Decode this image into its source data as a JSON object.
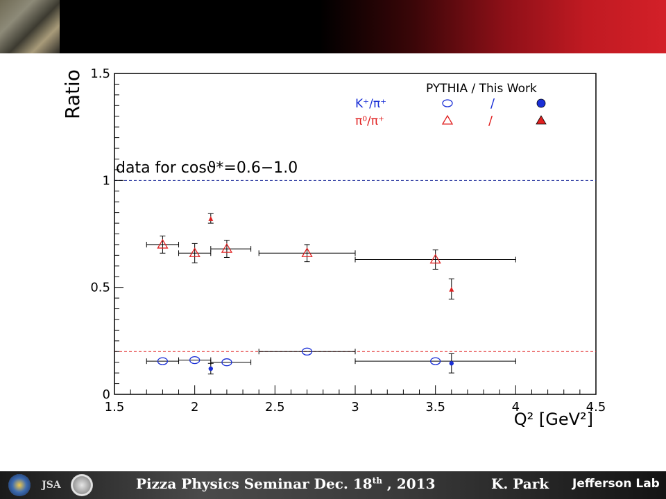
{
  "footer": {
    "seminar_prefix": "Pizza Physics  Seminar  Dec. 18",
    "seminar_sup": "th",
    "seminar_suffix": " , 2013",
    "author": "K. Park",
    "lab": "Jefferson Lab",
    "jsa": "JSA"
  },
  "chart_data": {
    "type": "scatter",
    "title": "",
    "xlabel": "Q² [GeV²]",
    "ylabel": "Ratio",
    "xlim": [
      1.5,
      4.5
    ],
    "ylim": [
      0,
      1.5
    ],
    "x_ticks": [
      "1.5",
      "2",
      "2.5",
      "3",
      "3.5",
      "4",
      "4.5"
    ],
    "y_ticks": [
      "0",
      "0.5",
      "1",
      "1.5"
    ],
    "annotation": "data for cosϑ*=0.6−1.0",
    "legend": {
      "header": "PYTHIA / This Work",
      "rows": [
        {
          "label": "K⁺/π⁺",
          "color": "#1a2fd6",
          "pythia_marker": "open-circle",
          "work_marker": "filled-circle",
          "separator": "/"
        },
        {
          "label": "π⁰/π⁺",
          "color": "#e02020",
          "pythia_marker": "open-triangle",
          "work_marker": "filled-triangle",
          "separator": "/"
        }
      ],
      "placement": "top-right"
    },
    "reference_lines": [
      {
        "y": 1.0,
        "color": "#1a2a9a",
        "style": "dashed"
      },
      {
        "y": 0.2,
        "color": "#e02020",
        "style": "dashed"
      }
    ],
    "series": [
      {
        "name": "K⁺/π⁺ PYTHIA",
        "marker": "open-circle",
        "color": "#1a2fd6",
        "points": [
          {
            "x": 1.8,
            "y": 0.155,
            "xerr": [
              1.7,
              1.9
            ]
          },
          {
            "x": 2.0,
            "y": 0.16,
            "xerr": [
              1.9,
              2.1
            ]
          },
          {
            "x": 2.2,
            "y": 0.15,
            "xerr": [
              2.1,
              2.35
            ]
          },
          {
            "x": 2.7,
            "y": 0.2,
            "xerr": [
              2.4,
              3.0
            ]
          },
          {
            "x": 3.5,
            "y": 0.155,
            "xerr": [
              3.0,
              4.0
            ]
          }
        ]
      },
      {
        "name": "K⁺/π⁺ This Work",
        "marker": "filled-circle",
        "color": "#1a2fd6",
        "points": [
          {
            "x": 2.1,
            "y": 0.12,
            "yerr": [
              0.095,
              0.145
            ]
          },
          {
            "x": 3.6,
            "y": 0.145,
            "yerr": [
              0.1,
              0.19
            ]
          }
        ]
      },
      {
        "name": "π⁰/π⁺ PYTHIA",
        "marker": "open-triangle",
        "color": "#e02020",
        "points": [
          {
            "x": 1.8,
            "y": 0.7,
            "xerr": [
              1.7,
              1.9
            ],
            "yerr": [
              0.66,
              0.74
            ]
          },
          {
            "x": 2.0,
            "y": 0.66,
            "xerr": [
              1.9,
              2.1
            ],
            "yerr": [
              0.615,
              0.705
            ]
          },
          {
            "x": 2.2,
            "y": 0.68,
            "xerr": [
              2.1,
              2.35
            ],
            "yerr": [
              0.64,
              0.72
            ]
          },
          {
            "x": 2.7,
            "y": 0.66,
            "xerr": [
              2.4,
              3.0
            ],
            "yerr": [
              0.62,
              0.7
            ]
          },
          {
            "x": 3.5,
            "y": 0.63,
            "xerr": [
              3.0,
              4.0
            ],
            "yerr": [
              0.585,
              0.675
            ]
          }
        ]
      },
      {
        "name": "π⁰/π⁺ This Work",
        "marker": "filled-triangle",
        "color": "#e02020",
        "points": [
          {
            "x": 2.1,
            "y": 0.82,
            "yerr": [
              0.8,
              0.845
            ]
          },
          {
            "x": 3.6,
            "y": 0.49,
            "yerr": [
              0.445,
              0.54
            ]
          }
        ]
      }
    ]
  }
}
